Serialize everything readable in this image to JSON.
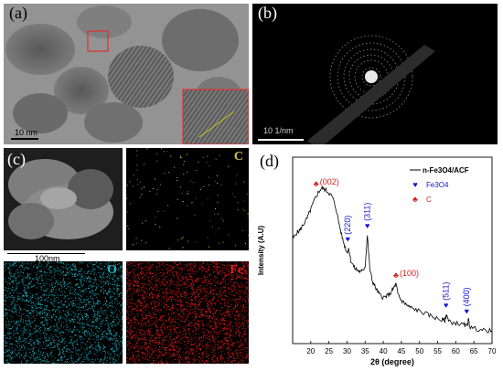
{
  "panels": {
    "a": {
      "label": "(a)",
      "scale": "10 nm"
    },
    "b": {
      "label": "(b)",
      "scale": "10 1/nm"
    },
    "c": {
      "label": "(c)",
      "scale": "100nm",
      "elements": [
        "C",
        "O",
        "Fe"
      ]
    },
    "d": {
      "label": "(d)"
    }
  },
  "colors": {
    "O": "#1fb5c6",
    "Fe": "#e11b1b",
    "C": "#cfc24a",
    "fe3o4_marker": "#1414d6",
    "c_marker": "#d42020"
  },
  "chart_data": {
    "type": "line",
    "xlabel": "2θ (degree)",
    "ylabel": "Intensity (A.U)",
    "xlim": [
      15,
      70
    ],
    "xticks": [
      20,
      25,
      30,
      35,
      40,
      45,
      50,
      55,
      60,
      65,
      70
    ],
    "series": [
      {
        "name": "n-Fe3O4/ACF",
        "x": [
          15,
          16,
          17,
          18,
          19,
          20,
          21,
          22,
          23,
          24,
          25,
          26,
          27,
          28,
          29,
          30,
          30.5,
          31,
          32,
          33,
          34,
          35,
          35.6,
          36.3,
          37,
          38,
          39,
          40,
          41,
          42,
          43,
          43.5,
          44,
          45,
          46,
          47,
          48,
          50,
          52,
          54,
          56,
          57,
          57.5,
          58,
          60,
          62,
          63,
          63.5,
          64,
          66,
          68,
          70
        ],
        "y": [
          0.66,
          0.7,
          0.72,
          0.76,
          0.8,
          0.86,
          0.92,
          0.97,
          1.0,
          0.99,
          0.97,
          0.94,
          0.86,
          0.74,
          0.64,
          0.57,
          0.6,
          0.52,
          0.47,
          0.45,
          0.44,
          0.48,
          0.69,
          0.46,
          0.38,
          0.33,
          0.29,
          0.27,
          0.28,
          0.3,
          0.34,
          0.36,
          0.3,
          0.25,
          0.23,
          0.21,
          0.2,
          0.18,
          0.16,
          0.14,
          0.12,
          0.12,
          0.16,
          0.11,
          0.1,
          0.09,
          0.08,
          0.12,
          0.07,
          0.06,
          0.05,
          0.05
        ]
      }
    ],
    "annotations": [
      {
        "text": "(002)",
        "x": 21.5,
        "y": 1.0,
        "phase": "C"
      },
      {
        "text": "(220)",
        "x": 30.2,
        "y": 0.63,
        "phase": "Fe3O4"
      },
      {
        "text": "(311)",
        "x": 35.6,
        "y": 0.72,
        "phase": "Fe3O4"
      },
      {
        "text": "(100)",
        "x": 43.5,
        "y": 0.39,
        "phase": "C"
      },
      {
        "text": "(511)",
        "x": 57.3,
        "y": 0.19,
        "phase": "Fe3O4"
      },
      {
        "text": "(400)",
        "x": 63.0,
        "y": 0.15,
        "phase": "Fe3O4"
      }
    ],
    "legend": [
      "n-Fe3O4/ACF",
      "Fe3O4",
      "C"
    ],
    "legend_position": "top-right"
  }
}
